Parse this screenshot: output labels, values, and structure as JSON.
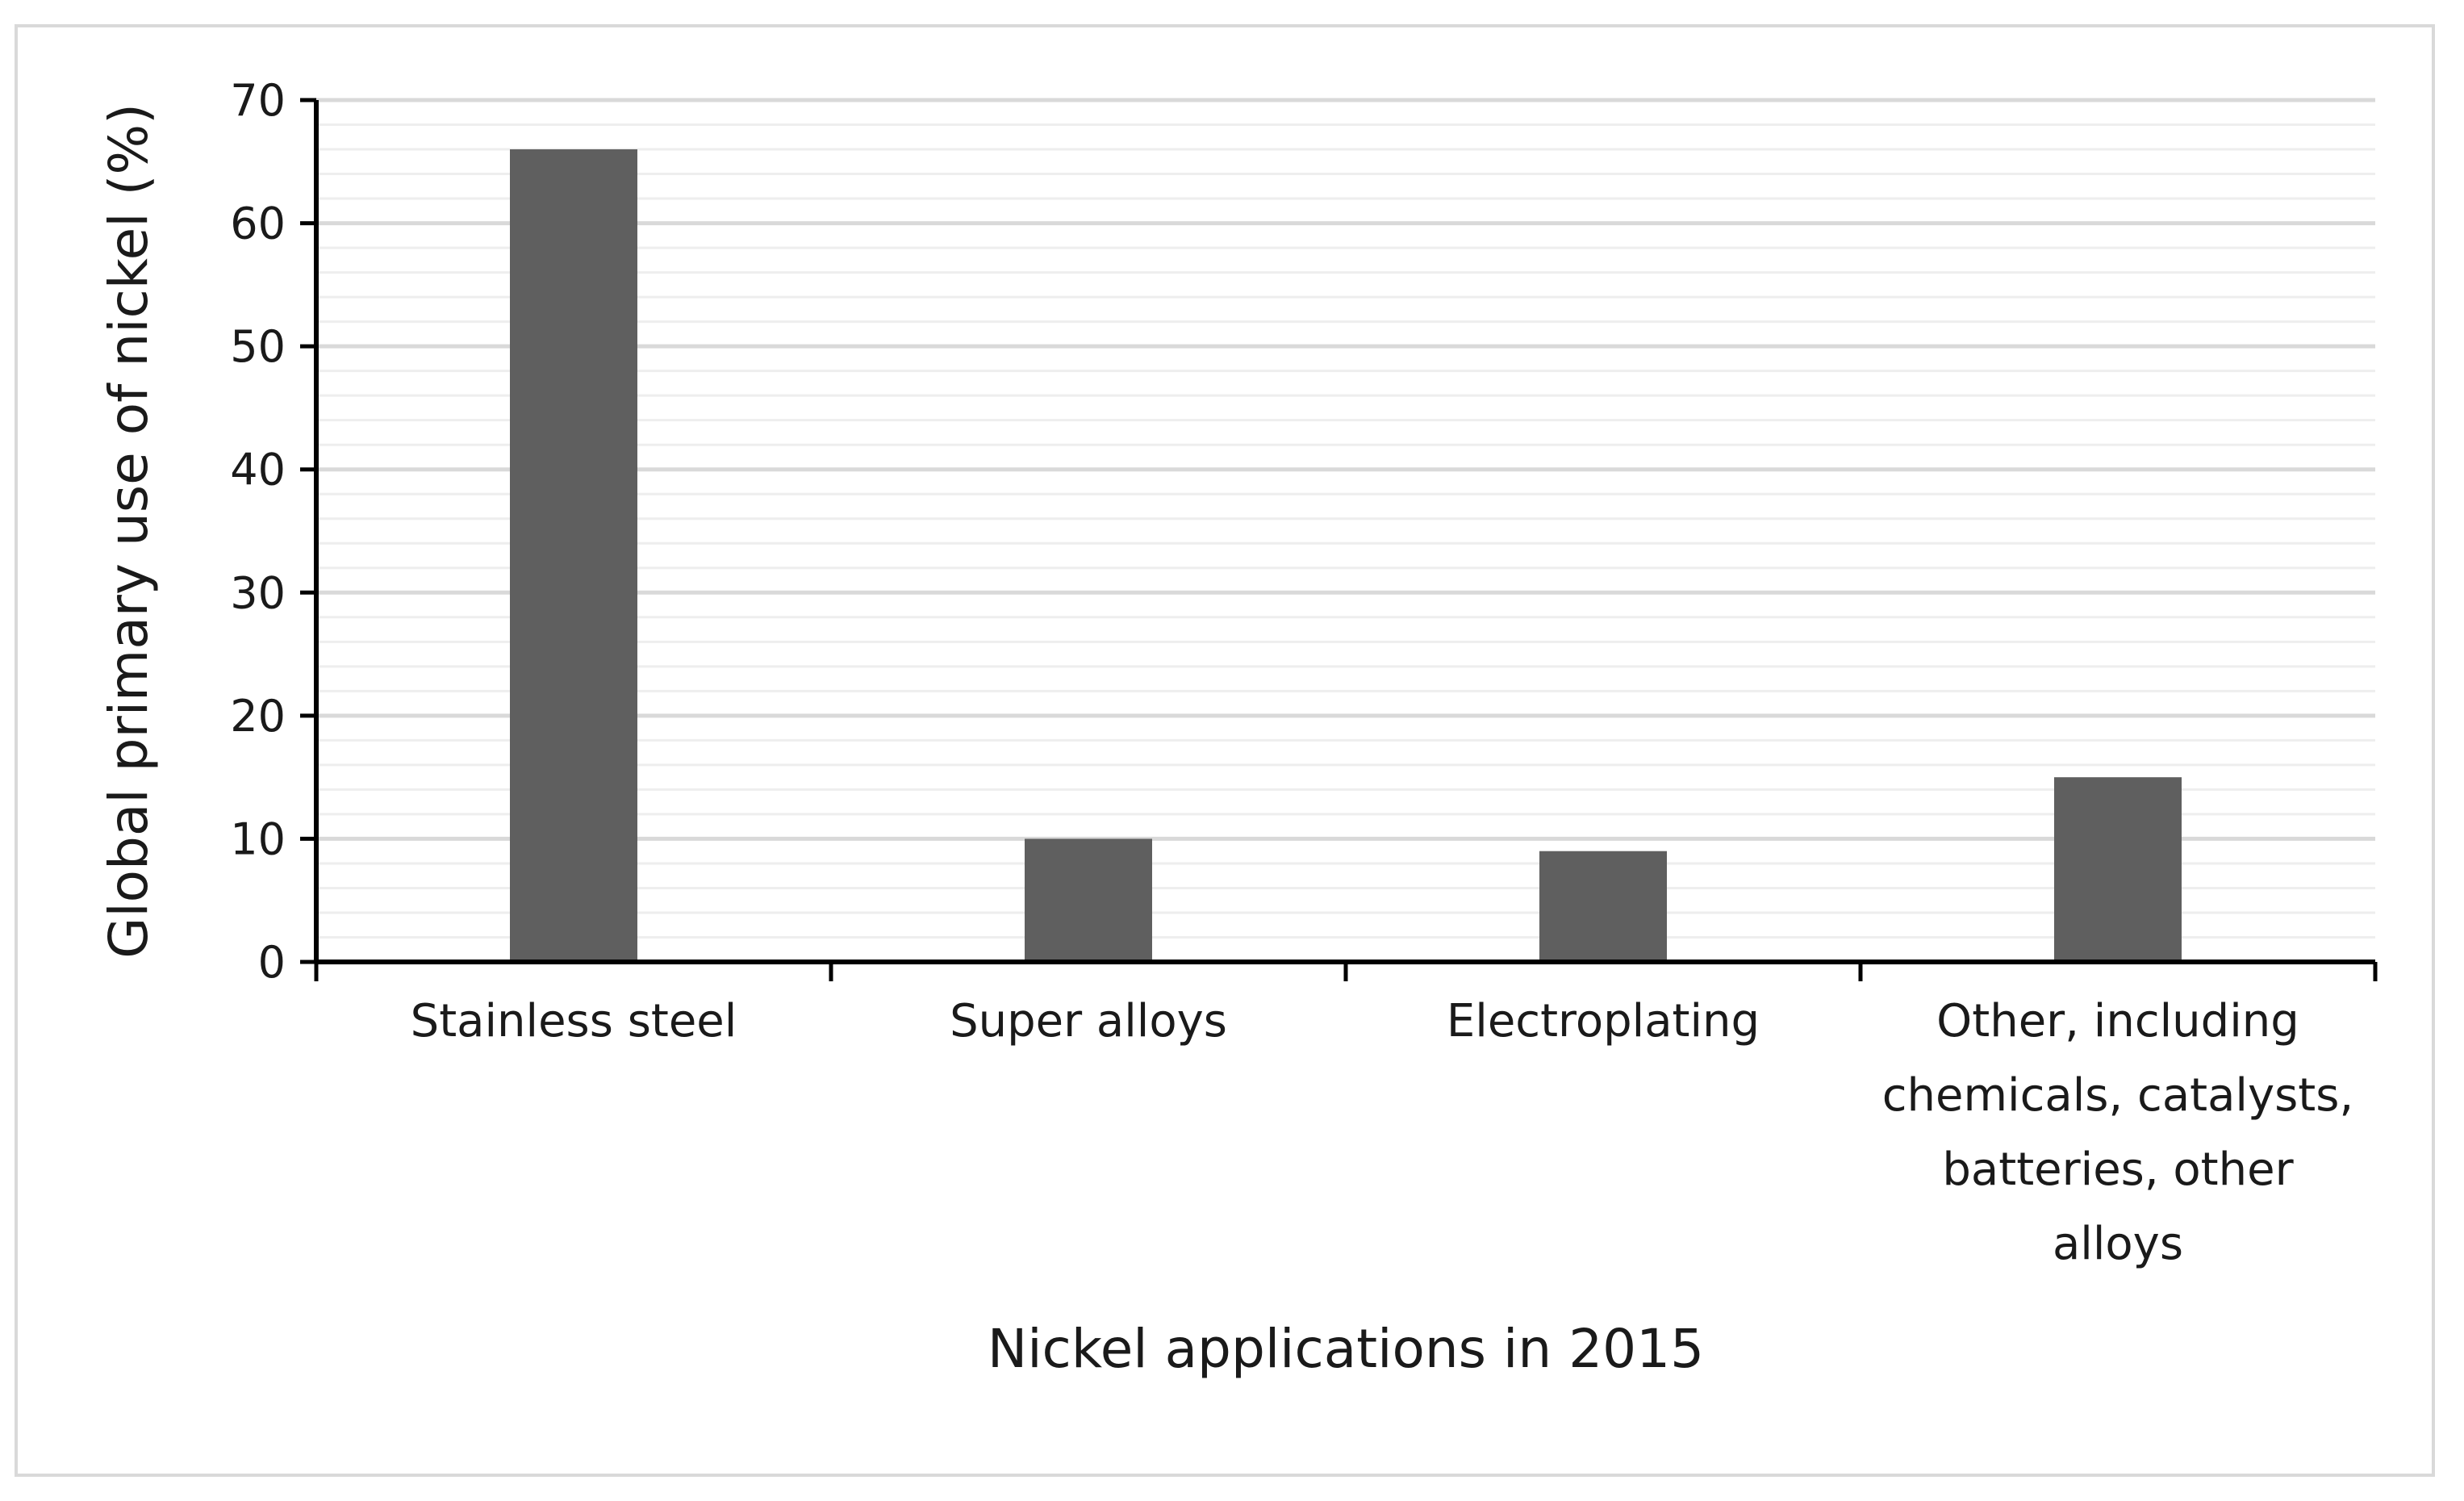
{
  "chart_data": {
    "type": "bar",
    "title": "",
    "xlabel": "Nickel applications in 2015",
    "ylabel": "Global primary use of nickel (%)",
    "categories": [
      [
        "Stainless steel"
      ],
      [
        "Super alloys"
      ],
      [
        "Electroplating"
      ],
      [
        "Other, including",
        "chemicals, catalysts,",
        "batteries, other",
        "alloys"
      ]
    ],
    "values": [
      66,
      10,
      9,
      15
    ],
    "ylim": [
      0,
      70
    ],
    "yticks": [
      0,
      10,
      20,
      30,
      40,
      50,
      60,
      70
    ],
    "grid": true,
    "legend": "none",
    "colors": {
      "bar": "#5f5f5f",
      "axis": "#000000",
      "major_grid": "#d9d9d9",
      "minor_grid": "#eeeeee"
    }
  }
}
